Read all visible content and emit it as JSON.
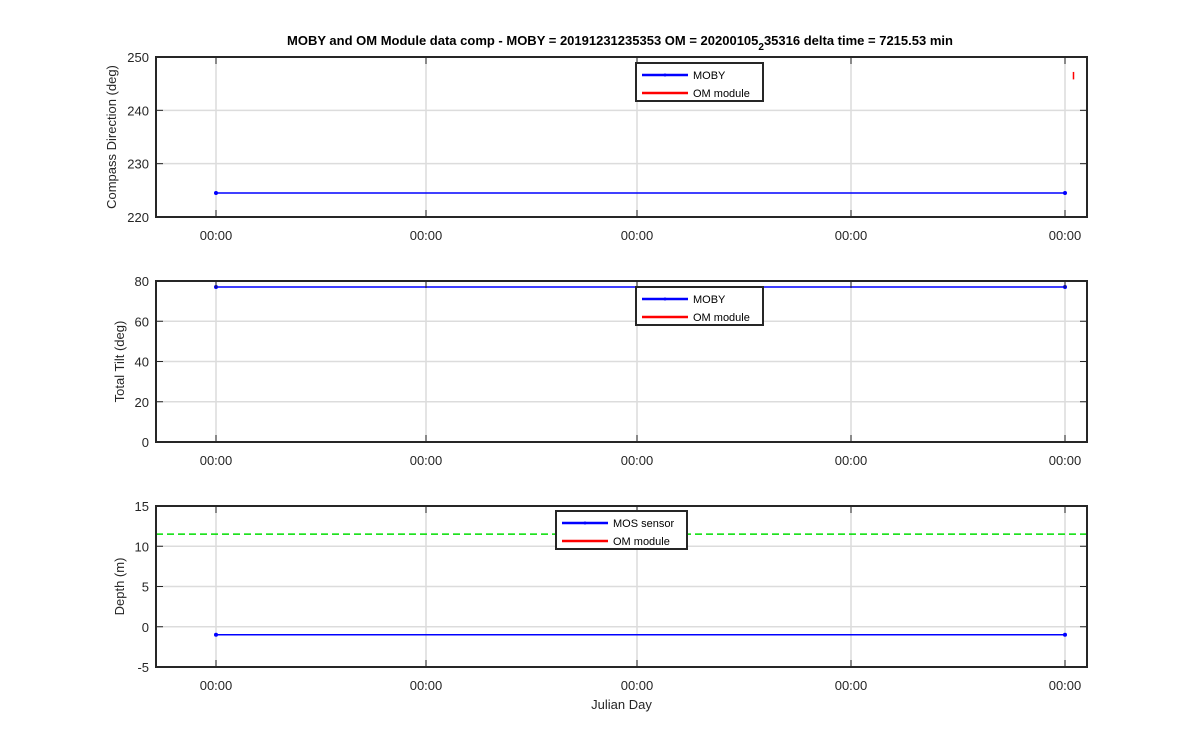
{
  "title": "MOBY and OM Module data comp - MOBY = 20191231235353 OM = 20200105",
  "title_subscript": "2",
  "title_tail": "35316 delta time = 7215.53 min",
  "colors": {
    "blue": "#0000ff",
    "red": "#ff0000",
    "green": "#00dd00",
    "axis": "#262626",
    "grid": "#dcdcdc"
  },
  "chart_data": [
    {
      "type": "line",
      "ylabel": "Compass Direction (deg)",
      "xlabel": "",
      "ylim": [
        220,
        250
      ],
      "yticks": [
        220,
        230,
        240,
        250
      ],
      "xtick_labels": [
        "00:00",
        "00:00",
        "00:00",
        "00:00",
        "00:00"
      ],
      "grid": true,
      "legend": {
        "location": "top-center",
        "entries": [
          "MOBY",
          "OM module"
        ]
      },
      "series": [
        {
          "name": "MOBY",
          "color": "#0000ff",
          "x": [
            0,
            1
          ],
          "y": [
            224.5,
            224.5
          ]
        },
        {
          "name": "OM module",
          "color": "#ff0000",
          "x": [
            1.01,
            1.01
          ],
          "y": [
            245.8,
            247.2
          ]
        }
      ]
    },
    {
      "type": "line",
      "ylabel": "Total Tilt (deg)",
      "xlabel": "",
      "ylim": [
        0,
        80
      ],
      "yticks": [
        0,
        20,
        40,
        60,
        80
      ],
      "xtick_labels": [
        "00:00",
        "00:00",
        "00:00",
        "00:00",
        "00:00"
      ],
      "grid": true,
      "legend": {
        "location": "top-center",
        "entries": [
          "MOBY",
          "OM module"
        ]
      },
      "series": [
        {
          "name": "MOBY",
          "color": "#0000ff",
          "x": [
            0,
            1
          ],
          "y": [
            77,
            77
          ]
        },
        {
          "name": "OM module",
          "color": "#ff0000",
          "x": [],
          "y": []
        }
      ]
    },
    {
      "type": "line",
      "ylabel": "Depth (m)",
      "xlabel": "Julian Day",
      "ylim": [
        -5,
        15
      ],
      "yticks": [
        -5,
        0,
        5,
        10,
        15
      ],
      "xtick_labels": [
        "00:00",
        "00:00",
        "00:00",
        "00:00",
        "00:00"
      ],
      "grid": true,
      "legend": {
        "location": "top-center",
        "entries": [
          "MOS sensor",
          "OM module"
        ]
      },
      "reference_line": {
        "y": 11.5,
        "color": "#00dd00",
        "style": "dashed"
      },
      "series": [
        {
          "name": "MOS sensor",
          "color": "#0000ff",
          "x": [
            0,
            1
          ],
          "y": [
            -1,
            -1
          ]
        },
        {
          "name": "OM module",
          "color": "#ff0000",
          "x": [],
          "y": []
        }
      ]
    }
  ]
}
